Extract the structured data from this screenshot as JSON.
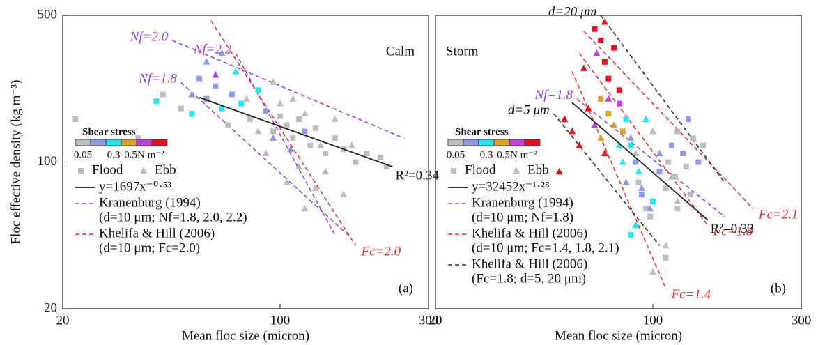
{
  "chart_data": [
    {
      "type": "scatter",
      "title": "Calm",
      "title_corner": "top-right",
      "panel_label": "(a)",
      "x_label": "Mean floc size (micron)",
      "y_label": "Floc effective density (kg m⁻³)",
      "log_x": true,
      "log_y": true,
      "xlim": [
        20,
        300
      ],
      "ylim": [
        20,
        500
      ],
      "xticks": [
        20,
        100,
        300
      ],
      "yticks": [
        20,
        100,
        500
      ],
      "shear_scale": {
        "title": "Shear stress",
        "colors": [
          "#bdbdbd",
          "#8c9be8",
          "#22e6f0",
          "#e0a020",
          "#c040e0",
          "#e8101a"
        ],
        "labels": [
          "0.05",
          "0.3",
          "0.5N m⁻²"
        ]
      },
      "series": [
        {
          "name": "Flood",
          "marker": "square",
          "x": [
            22,
            35,
            40,
            42,
            48,
            52,
            55,
            58,
            62,
            65,
            68,
            70,
            75,
            80,
            85,
            90,
            95,
            100,
            105,
            110,
            115,
            120,
            125,
            130,
            140,
            150,
            160,
            175,
            190,
            210,
            220
          ],
          "y": [
            160,
            130,
            195,
            210,
            180,
            170,
            250,
            200,
            230,
            180,
            150,
            210,
            190,
            160,
            220,
            175,
            140,
            165,
            150,
            130,
            160,
            140,
            120,
            145,
            110,
            130,
            115,
            100,
            110,
            105,
            95
          ],
          "colors": [
            "#bdbdbd",
            "#bdbdbd",
            "#22e6f0",
            "#bdbdbd",
            "#bdbdbd",
            "#22e6f0",
            "#8c9be8",
            "#8c9be8",
            "#8c9be8",
            "#22e6f0",
            "#bdbdbd",
            "#8c9be8",
            "#22e6f0",
            "#bdbdbd",
            "#22e6f0",
            "#8c9be8",
            "#bdbdbd",
            "#bdbdbd",
            "#bdbdbd",
            "#bdbdbd",
            "#bdbdbd",
            "#8c9be8",
            "#bdbdbd",
            "#bdbdbd",
            "#bdbdbd",
            "#bdbdbd",
            "#bdbdbd",
            "#bdbdbd",
            "#bdbdbd",
            "#bdbdbd",
            "#bdbdbd"
          ]
        },
        {
          "name": "Ebb",
          "marker": "triangle",
          "x": [
            52,
            58,
            65,
            72,
            78,
            85,
            90,
            95,
            100,
            105,
            110,
            115,
            120,
            130,
            135,
            140,
            150,
            160,
            170,
            120,
            95,
            108,
            62
          ],
          "y": [
            210,
            300,
            330,
            270,
            200,
            140,
            110,
            240,
            190,
            80,
            200,
            95,
            170,
            75,
            120,
            90,
            160,
            70,
            120,
            60,
            130,
            115,
            260
          ],
          "colors": [
            "#8c9be8",
            "#8c9be8",
            "#8c9be8",
            "#22e6f0",
            "#bdbdbd",
            "#bdbdbd",
            "#bdbdbd",
            "#bdbdbd",
            "#bdbdbd",
            "#bdbdbd",
            "#bdbdbd",
            "#bdbdbd",
            "#bdbdbd",
            "#bdbdbd",
            "#bdbdbd",
            "#bdbdbd",
            "#bdbdbd",
            "#bdbdbd",
            "#bdbdbd",
            "#bdbdbd",
            "#8c9be8",
            "#8c9be8",
            "#c040e0"
          ]
        }
      ],
      "fit": {
        "name": "y=1697x⁻⁰·⁵³",
        "color": "#222222",
        "x": [
          55,
          230
        ],
        "y": [
          203,
          95
        ],
        "r2": "R²=0.34"
      },
      "ref_groups": [
        {
          "name": "Kranenburg (1994)",
          "detail": "(d=10 μm; Nf=1.8, 2.0, 2.2)",
          "color": "#a040e0",
          "lines": [
            {
              "label": "Nf=2.0",
              "label_at": "start",
              "x": [
                45,
                250
              ],
              "y": [
                380,
                130
              ]
            },
            {
              "label": "Nf=1.8",
              "label_at": "start",
              "x": [
                48,
                165
              ],
              "y": [
                240,
                45
              ]
            },
            {
              "label": "Nf=2.2",
              "label_at": "start",
              "x": [
                72,
                150
              ],
              "y": [
                330,
                45
              ]
            }
          ]
        },
        {
          "name": "Khelifa & Hill (2006)",
          "detail": "(d=10 μm; Fc=2.0)",
          "color": "#e83030",
          "lines": [
            {
              "label": "Fc=2.0",
              "label_at": "end",
              "x": [
                60,
                175
              ],
              "y": [
                470,
                40
              ]
            }
          ]
        }
      ]
    },
    {
      "type": "scatter",
      "title": "Storm",
      "title_corner": "top-left",
      "panel_label": "(b)",
      "x_label": "Mean floc size (micron)",
      "log_x": true,
      "log_y": true,
      "xlim": [
        20,
        300
      ],
      "ylim": [
        20,
        500
      ],
      "xticks": [
        20,
        100,
        300
      ],
      "shear_scale": {
        "title": "Shear stress",
        "colors": [
          "#bdbdbd",
          "#8c9be8",
          "#22e6f0",
          "#e0a020",
          "#c040e0",
          "#e8101a"
        ],
        "labels": [
          "0.05",
          "0.3",
          "0.5N m⁻²"
        ]
      },
      "series": [
        {
          "name": "Flood",
          "marker": "square",
          "x": [
            65,
            68,
            70,
            72,
            75,
            78,
            68,
            72,
            78,
            80,
            82,
            85,
            88,
            90,
            92,
            95,
            98,
            100,
            105,
            110,
            112,
            115,
            118,
            120,
            125,
            128,
            130,
            132,
            135,
            140,
            145,
            120,
            110,
            85
          ],
          "y": [
            430,
            380,
            300,
            250,
            350,
            220,
            200,
            170,
            190,
            140,
            160,
            120,
            100,
            80,
            70,
            60,
            55,
            65,
            90,
            75,
            100,
            120,
            85,
            140,
            110,
            95,
            160,
            70,
            130,
            100,
            120,
            60,
            35,
            45
          ],
          "colors": [
            "#e8101a",
            "#e8101a",
            "#e8101a",
            "#e8101a",
            "#e8101a",
            "#e8101a",
            "#e0a020",
            "#e0a020",
            "#c040e0",
            "#e0a020",
            "#22e6f0",
            "#22e6f0",
            "#8c9be8",
            "#bdbdbd",
            "#8c9be8",
            "#bdbdbd",
            "#bdbdbd",
            "#22e6f0",
            "#8c9be8",
            "#bdbdbd",
            "#bdbdbd",
            "#8c9be8",
            "#bdbdbd",
            "#bdbdbd",
            "#8c9be8",
            "#bdbdbd",
            "#8c9be8",
            "#bdbdbd",
            "#bdbdbd",
            "#8c9be8",
            "#bdbdbd",
            "#bdbdbd",
            "#bdbdbd",
            "#22e6f0"
          ]
        },
        {
          "name": "Ebb",
          "marker": "triangle",
          "x": [
            50,
            52,
            55,
            58,
            60,
            62,
            65,
            68,
            70,
            72,
            75,
            78,
            80,
            82,
            85,
            88,
            90,
            92,
            95,
            98,
            100,
            105,
            110,
            115,
            120,
            100,
            88,
            70,
            66
          ],
          "y": [
            90,
            160,
            140,
            120,
            280,
            180,
            150,
            130,
            110,
            200,
            150,
            120,
            100,
            80,
            130,
            110,
            90,
            75,
            160,
            60,
            140,
            110,
            40,
            85,
            65,
            30,
            50,
            465,
            330
          ],
          "colors": [
            "#e8101a",
            "#e8101a",
            "#e8101a",
            "#e8101a",
            "#e8101a",
            "#e8101a",
            "#c040e0",
            "#e0a020",
            "#e8101a",
            "#c040e0",
            "#e0a020",
            "#22e6f0",
            "#22e6f0",
            "#8c9be8",
            "#8c9be8",
            "#bdbdbd",
            "#22e6f0",
            "#8c9be8",
            "#22e6f0",
            "#8c9be8",
            "#bdbdbd",
            "#8c9be8",
            "#bdbdbd",
            "#bdbdbd",
            "#bdbdbd",
            "#bdbdbd",
            "#22e6f0",
            "#e8101a",
            "#c040e0"
          ]
        }
      ],
      "fit": {
        "name": "y=32452x⁻¹·²⁸",
        "color": "#222222",
        "x": [
          55,
          150
        ],
        "y": [
          192,
          53
        ],
        "r2": "R²=0.33"
      },
      "ref_groups": [
        {
          "name": "Kranenburg (1994)",
          "detail": "(d=10 μm; Nf=1.8)",
          "color": "#a040e0",
          "lines": [
            {
              "label": "Nf=1.8",
              "label_at": "start",
              "x": [
                57,
                170
              ],
              "y": [
                200,
                55
              ]
            }
          ]
        },
        {
          "name": "Khelifa & Hill (2006)",
          "detail": "(d=10 μm; Fc=1.4, 1.8, 2.1)",
          "color": "#e83030",
          "lines": [
            {
              "label": "Fc=1.4",
              "label_at": "end",
              "x": [
                55,
                110
              ],
              "y": [
                270,
                25
              ]
            },
            {
              "label": "Fc=1.8",
              "label_at": "end",
              "x": [
                58,
                150
              ],
              "y": [
                330,
                50
              ]
            },
            {
              "label": "Fc=2.1",
              "label_at": "end",
              "x": [
                60,
                210
              ],
              "y": [
                420,
                60
              ]
            }
          ]
        },
        {
          "name": "Khelifa & Hill (2006)",
          "detail": "(Fc=1.8; d=5, 20 μm)",
          "color": "#333333",
          "lines": [
            {
              "label": "d=5 μm",
              "label_at": "start",
              "x": [
                48,
                105
              ],
              "y": [
                170,
                40
              ]
            },
            {
              "label": "d=20 μm",
              "label_at": "start",
              "x": [
                68,
                170
              ],
              "y": [
                500,
                80
              ]
            }
          ]
        }
      ]
    }
  ]
}
